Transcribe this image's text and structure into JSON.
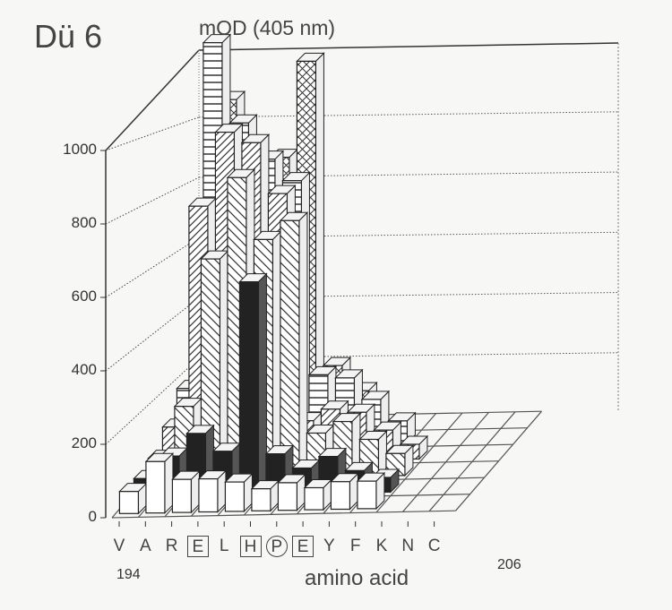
{
  "chart_data": {
    "type": "bar",
    "subtype": "3d-bar",
    "title": "Dü 6",
    "ylabel": "mOD (405 nm)",
    "xlabel": "amino acid",
    "ylim": [
      0,
      1000
    ],
    "yticks": [
      "0",
      "200",
      "400",
      "600",
      "800",
      "1000"
    ],
    "categories": [
      "V",
      "A",
      "R",
      "E",
      "L",
      "H",
      "P",
      "E",
      "Y",
      "F",
      "K",
      "N",
      "C"
    ],
    "category_marks": [
      "",
      "",
      "",
      "boxed",
      "",
      "boxed",
      "circled",
      "boxed",
      "",
      "",
      "",
      "",
      ""
    ],
    "range_start": "194",
    "range_end": "206",
    "grid": true,
    "series": [
      {
        "pattern": "white",
        "values": [
          60,
          140,
          90,
          90,
          80,
          60,
          75,
          60,
          75,
          75,
          0,
          0,
          0
        ]
      },
      {
        "pattern": "black",
        "values": [
          50,
          110,
          170,
          120,
          580,
          110,
          70,
          100,
          60,
          40,
          0,
          0,
          0
        ]
      },
      {
        "pattern": "zigzag",
        "values": [
          60,
          200,
          600,
          820,
          650,
          700,
          120,
          150,
          100,
          60,
          0,
          0,
          0
        ]
      },
      {
        "pattern": "diagonal",
        "values": [
          100,
          700,
          900,
          870,
          730,
          110,
          140,
          130,
          80,
          40,
          0,
          0,
          0
        ]
      },
      {
        "pattern": "horizontal",
        "values": [
          160,
          1100,
          880,
          780,
          720,
          190,
          180,
          120,
          60,
          0,
          0,
          0,
          0
        ]
      },
      {
        "pattern": "crosshatch",
        "values": [
          600,
          900,
          700,
          740,
          1000,
          170,
          100,
          0,
          0,
          0,
          0,
          0,
          0
        ]
      }
    ]
  }
}
